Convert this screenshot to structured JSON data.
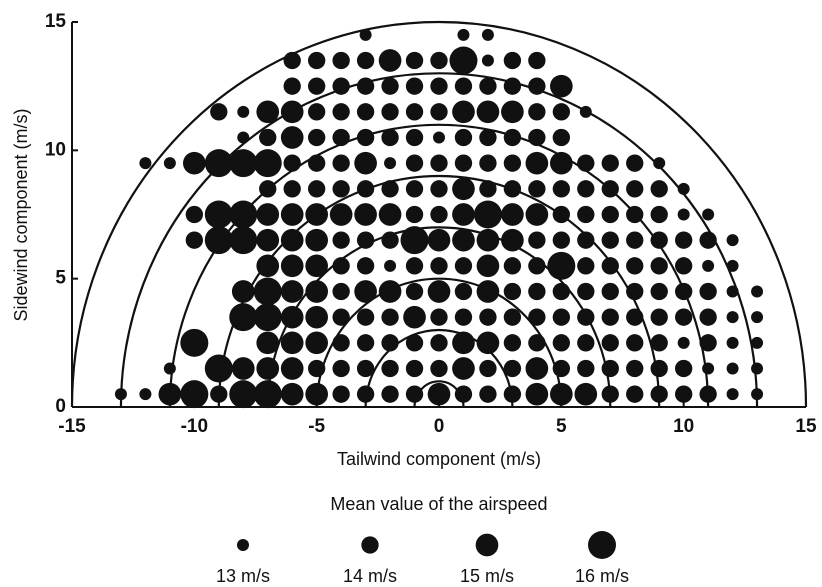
{
  "chart_data": {
    "type": "scatter",
    "xlabel": "Tailwind  component (m/s)",
    "ylabel": "Sidewind  component (m/s)",
    "xlim": [
      -15,
      15
    ],
    "xticks": [
      -15,
      -10,
      -5,
      0,
      5,
      10,
      15
    ],
    "ylim": [
      0,
      15
    ],
    "yticks": [
      0,
      5,
      10,
      15
    ],
    "color": "#111111",
    "arc_radii": [
      1,
      3,
      5,
      7,
      9,
      11,
      13,
      15
    ],
    "legend": {
      "title": "Mean value of the airspeed",
      "sizes": [
        13,
        14,
        15,
        16
      ],
      "labels": [
        "13 m/s",
        "14 m/s",
        "15 m/s",
        "16  m/s"
      ]
    },
    "rows": [
      {
        "y": 0.5,
        "x": [
          -13,
          -12,
          -11,
          -10,
          -9,
          -8,
          -7,
          -6,
          -5,
          -4,
          -3,
          -2,
          -1,
          0,
          1,
          2,
          3,
          4,
          5,
          6,
          7,
          8,
          9,
          10,
          11,
          12,
          13
        ],
        "sizes": [
          13,
          13,
          15,
          16,
          14,
          16,
          16,
          15,
          15,
          14,
          14,
          14,
          14,
          15,
          14,
          14,
          14,
          15,
          15,
          15,
          14,
          14,
          14,
          14,
          14,
          13,
          13
        ]
      },
      {
        "y": 1.5,
        "x": [
          -11,
          -9,
          -8,
          -7,
          -6,
          -5,
          -4,
          -3,
          -2,
          -1,
          0,
          1,
          2,
          3,
          4,
          5,
          6,
          7,
          8,
          9,
          10,
          11,
          12,
          13
        ],
        "sizes": [
          13,
          16,
          15,
          15,
          15,
          14,
          14,
          14,
          14,
          14,
          14,
          15,
          14,
          14,
          15,
          14,
          14,
          14,
          14,
          14,
          14,
          13,
          13,
          13
        ]
      },
      {
        "y": 2.5,
        "x": [
          -10,
          -7,
          -6,
          -5,
          -4,
          -3,
          -2,
          -1,
          0,
          1,
          2,
          3,
          4,
          5,
          6,
          7,
          8,
          9,
          10,
          11,
          12,
          13
        ],
        "sizes": [
          16,
          15,
          15,
          15,
          14,
          14,
          14,
          14,
          14,
          15,
          15,
          14,
          14,
          14,
          14,
          14,
          14,
          14,
          13,
          14,
          13,
          13
        ]
      },
      {
        "y": 3.5,
        "x": [
          -8,
          -7,
          -6,
          -5,
          -4,
          -3,
          -2,
          -1,
          0,
          1,
          2,
          3,
          4,
          5,
          6,
          7,
          8,
          9,
          10,
          11,
          12,
          13
        ],
        "sizes": [
          16,
          16,
          15,
          15,
          14,
          14,
          14,
          15,
          14,
          14,
          14,
          14,
          14,
          14,
          14,
          14,
          14,
          14,
          14,
          14,
          13,
          13
        ]
      },
      {
        "y": 4.5,
        "x": [
          -8,
          -7,
          -6,
          -5,
          -4,
          -3,
          -2,
          -1,
          0,
          1,
          2,
          3,
          4,
          5,
          6,
          7,
          8,
          9,
          10,
          11,
          12,
          13
        ],
        "sizes": [
          15,
          16,
          15,
          15,
          14,
          15,
          15,
          14,
          15,
          14,
          15,
          14,
          14,
          14,
          14,
          14,
          14,
          14,
          14,
          14,
          13,
          13
        ]
      },
      {
        "y": 5.5,
        "x": [
          -7,
          -6,
          -5,
          -4,
          -3,
          -2,
          -1,
          0,
          1,
          2,
          3,
          4,
          5,
          6,
          7,
          8,
          9,
          10,
          11,
          12
        ],
        "sizes": [
          15,
          15,
          15,
          14,
          14,
          13,
          14,
          14,
          14,
          15,
          14,
          14,
          16,
          14,
          14,
          14,
          14,
          14,
          13,
          13
        ]
      },
      {
        "y": 6.5,
        "x": [
          -10,
          -9,
          -8,
          -7,
          -6,
          -5,
          -4,
          -3,
          -2,
          -1,
          0,
          1,
          2,
          3,
          4,
          5,
          6,
          7,
          8,
          9,
          10,
          11,
          12
        ],
        "sizes": [
          14,
          16,
          16,
          15,
          15,
          15,
          14,
          14,
          14,
          16,
          15,
          15,
          15,
          15,
          14,
          14,
          14,
          14,
          14,
          14,
          14,
          14,
          13
        ]
      },
      {
        "y": 7.5,
        "x": [
          -10,
          -9,
          -8,
          -7,
          -6,
          -5,
          -4,
          -3,
          -2,
          -1,
          0,
          1,
          2,
          3,
          4,
          5,
          6,
          7,
          8,
          9,
          10,
          11
        ],
        "sizes": [
          14,
          16,
          16,
          15,
          15,
          15,
          15,
          15,
          15,
          14,
          14,
          15,
          16,
          15,
          15,
          14,
          14,
          14,
          14,
          14,
          13,
          13
        ]
      },
      {
        "y": 8.5,
        "x": [
          -7,
          -6,
          -5,
          -4,
          -3,
          -2,
          -1,
          0,
          1,
          2,
          3,
          4,
          5,
          6,
          7,
          8,
          9,
          10
        ],
        "sizes": [
          14,
          14,
          14,
          14,
          14,
          14,
          14,
          14,
          15,
          14,
          14,
          14,
          14,
          14,
          14,
          14,
          14,
          13
        ]
      },
      {
        "y": 9.5,
        "x": [
          -12,
          -11,
          -10,
          -9,
          -8,
          -7,
          -6,
          -5,
          -4,
          -3,
          -2,
          -1,
          0,
          1,
          2,
          3,
          4,
          5,
          6,
          7,
          8,
          9
        ],
        "sizes": [
          13,
          13,
          15,
          16,
          16,
          16,
          14,
          14,
          14,
          15,
          13,
          14,
          14,
          14,
          14,
          14,
          15,
          15,
          14,
          14,
          14,
          13
        ]
      },
      {
        "y": 10.5,
        "x": [
          -8,
          -7,
          -6,
          -5,
          -4,
          -3,
          -2,
          -1,
          0,
          1,
          2,
          3,
          4,
          5
        ],
        "sizes": [
          13,
          14,
          15,
          14,
          14,
          14,
          14,
          14,
          13,
          14,
          14,
          14,
          14,
          14
        ]
      },
      {
        "y": 11.5,
        "x": [
          -9,
          -8,
          -7,
          -6,
          -5,
          -4,
          -3,
          -2,
          -1,
          0,
          1,
          2,
          3,
          4,
          5,
          6
        ],
        "sizes": [
          14,
          13,
          15,
          15,
          14,
          14,
          14,
          14,
          14,
          14,
          15,
          15,
          15,
          14,
          14,
          13
        ]
      },
      {
        "y": 12.5,
        "x": [
          -6,
          -5,
          -4,
          -3,
          -2,
          -1,
          0,
          1,
          2,
          3,
          4,
          5
        ],
        "sizes": [
          14,
          14,
          14,
          14,
          14,
          14,
          14,
          14,
          14,
          14,
          14,
          15
        ]
      },
      {
        "y": 13.5,
        "x": [
          -6,
          -5,
          -4,
          -3,
          -2,
          -1,
          0,
          1,
          2,
          3,
          4
        ],
        "sizes": [
          14,
          14,
          14,
          14,
          15,
          14,
          14,
          16,
          13,
          14,
          14
        ]
      },
      {
        "y": 14.5,
        "x": [
          -3,
          1,
          2
        ],
        "sizes": [
          13,
          13,
          13
        ]
      }
    ]
  }
}
